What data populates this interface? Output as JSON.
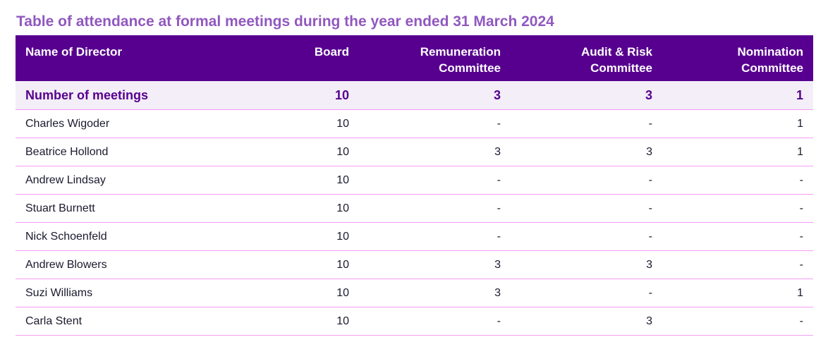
{
  "title": "Table of attendance at formal meetings during the year ended 31 March 2024",
  "colors": {
    "title": "#9158c0",
    "header_bg": "#57008f",
    "totals_bg": "#f3eef7",
    "row_border": "#f59cf5"
  },
  "table": {
    "headers": [
      "Name of Director",
      "Board",
      "Remuneration Committee",
      "Audit & Risk Committee",
      "Nomination Committee"
    ],
    "totals": [
      "Number of meetings",
      "10",
      "3",
      "3",
      "1"
    ],
    "rows": [
      [
        "Charles Wigoder",
        "10",
        "-",
        "-",
        "1"
      ],
      [
        "Beatrice Hollond",
        "10",
        "3",
        "3",
        "1"
      ],
      [
        "Andrew Lindsay",
        "10",
        "-",
        "-",
        "-"
      ],
      [
        "Stuart Burnett",
        "10",
        "-",
        "-",
        "-"
      ],
      [
        "Nick Schoenfeld",
        "10",
        "-",
        "-",
        "-"
      ],
      [
        "Andrew Blowers",
        "10",
        "3",
        "3",
        "-"
      ],
      [
        "Suzi Williams",
        "10",
        "3",
        "-",
        "1"
      ],
      [
        "Carla Stent",
        "10",
        "-",
        "3",
        "-"
      ]
    ]
  }
}
